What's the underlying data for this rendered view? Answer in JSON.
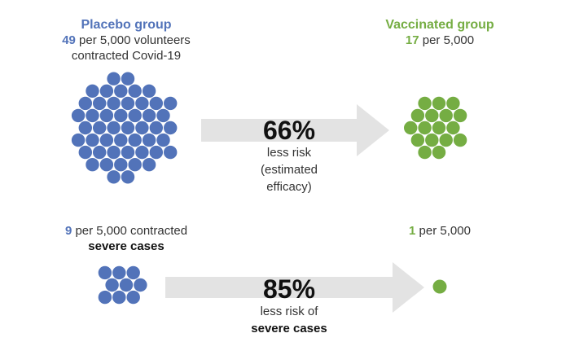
{
  "colors": {
    "placebo": "#5273B9",
    "vaccinated": "#75AD43",
    "arrow": "#E3E3E3",
    "text": "#333333"
  },
  "placebo": {
    "title": "Placebo group",
    "count": "49",
    "text_line1": " per 5,000 volunteers",
    "text_line2": "contracted Covid-19",
    "dot_count": 49
  },
  "vaccinated": {
    "title": "Vaccinated group",
    "count": "17",
    "text": " per 5,000",
    "dot_count": 17
  },
  "efficacy_overall": {
    "value": "66%",
    "line1": "less risk",
    "line2": "(estimated",
    "line3": "efficacy)"
  },
  "severe_placebo": {
    "count": "9",
    "text_line1": " per 5,000 contracted",
    "text_line2": "severe cases",
    "dot_count": 9
  },
  "severe_vaccinated": {
    "count": "1",
    "text": " per 5,000",
    "dot_count": 1
  },
  "efficacy_severe": {
    "value": "85%",
    "line1": "less risk of",
    "line2": "severe cases"
  }
}
